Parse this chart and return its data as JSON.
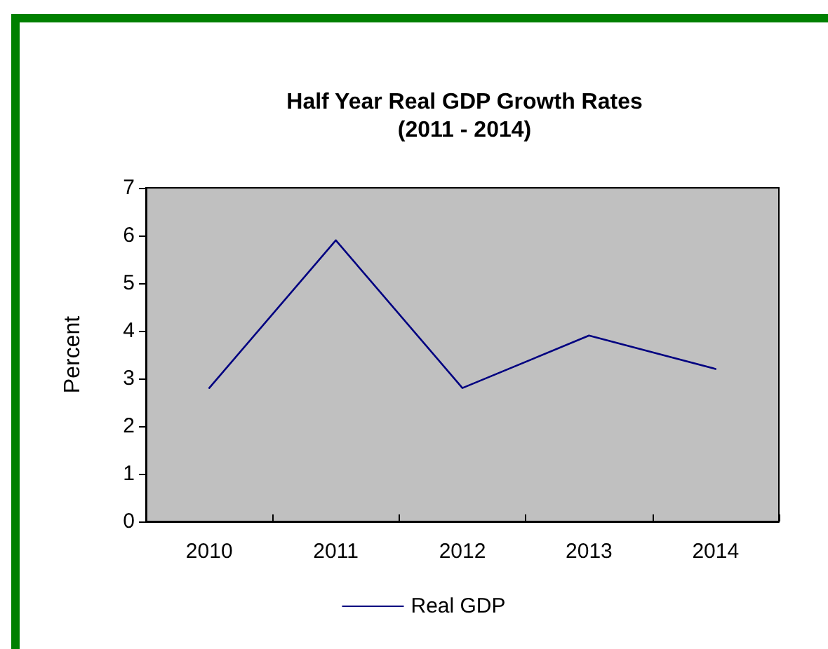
{
  "chart_data": {
    "type": "line",
    "title": "Half Year Real GDP Growth Rates\n(2011 - 2014)",
    "ylabel": "Percent",
    "categories": [
      "2010",
      "2011",
      "2012",
      "2013",
      "2014"
    ],
    "series": [
      {
        "name": "Real GDP",
        "color": "#000080",
        "values": [
          2.8,
          5.9,
          2.8,
          3.9,
          3.2
        ]
      }
    ],
    "ylim": [
      0,
      7
    ],
    "yticks": [
      0,
      1,
      2,
      3,
      4,
      5,
      6,
      7
    ],
    "grid": false,
    "legend": "bottom",
    "marker": "none",
    "line_style": "solid"
  }
}
